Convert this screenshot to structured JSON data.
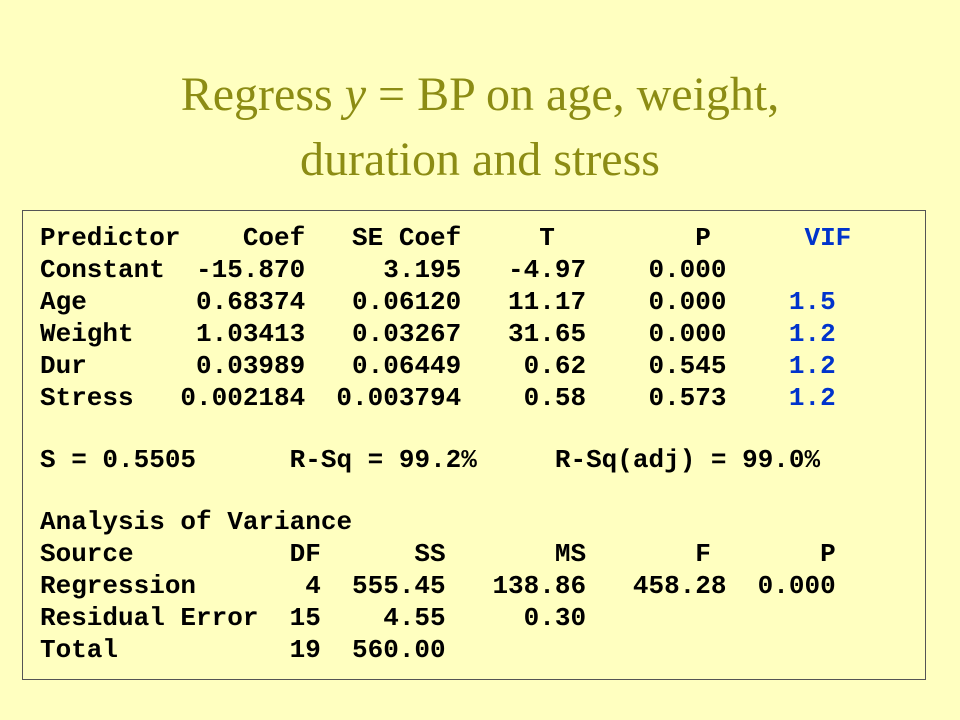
{
  "title": {
    "before": "Regress ",
    "italic": "y",
    "after": " = BP on age, weight, duration and stress"
  },
  "coef_table": {
    "header": [
      "Predictor",
      "Coef",
      "SE Coef",
      "T",
      "P",
      "VIF"
    ],
    "rows": [
      [
        "Constant",
        "-15.870",
        "3.195",
        "-4.97",
        "0.000"
      ],
      [
        "Age",
        "0.68374",
        "0.06120",
        "11.17",
        "0.000",
        "1.5"
      ],
      [
        "Weight",
        "1.03413",
        "0.03267",
        "31.65",
        "0.000",
        "1.2"
      ],
      [
        "Dur",
        "0.03989",
        "0.06449",
        "0.62",
        "0.545",
        "1.2"
      ],
      [
        "Stress",
        "0.002184",
        "0.003794",
        "0.58",
        "0.573",
        "1.2"
      ]
    ]
  },
  "summary": [
    "S = 0.5505",
    "R-Sq = 99.2%",
    "R-Sq(adj) = 99.0%"
  ],
  "anova": {
    "title": "Analysis of Variance",
    "header": [
      "Source",
      "DF",
      "SS",
      "MS",
      "F",
      "P"
    ],
    "rows": [
      [
        "Regression",
        "4",
        "555.45",
        "138.86",
        "458.28",
        "0.000"
      ],
      [
        "Residual Error",
        "15",
        "4.55",
        "0.30"
      ],
      [
        "Total",
        "19",
        "560.00"
      ]
    ]
  }
}
